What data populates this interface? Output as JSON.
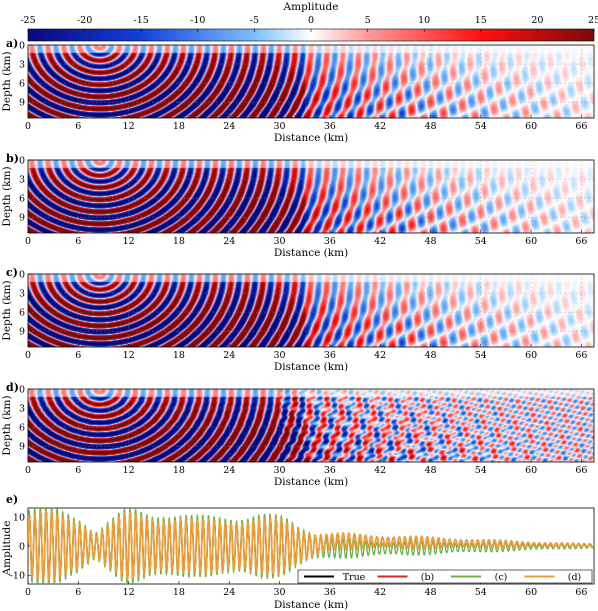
{
  "colorbar": {
    "label": "Amplitude",
    "ticks": [
      -25,
      -20,
      -15,
      -10,
      -5,
      0,
      5,
      10,
      15,
      20,
      25
    ],
    "range": [
      -25,
      25
    ],
    "colors": {
      "negative": "#08087a",
      "mid_negative": "#3aa0ff",
      "zero": "#ffffff",
      "mid_positive": "#ff2a2a",
      "positive": "#7a0a0a"
    }
  },
  "xaxis": {
    "label": "Distance (km)",
    "ticks": [
      0,
      6,
      12,
      18,
      24,
      30,
      36,
      42,
      48,
      54,
      60,
      66
    ],
    "range": [
      0,
      67.5
    ]
  },
  "panels": [
    {
      "tag": "a)",
      "ylabel": "Depth (km)",
      "yticks": [
        0,
        3,
        6,
        9
      ],
      "yrange": [
        0,
        11.5
      ],
      "wavefield_noise": 0.15
    },
    {
      "tag": "b)",
      "ylabel": "Depth (km)",
      "yticks": [
        0,
        3,
        6,
        9
      ],
      "yrange": [
        0,
        11.5
      ],
      "wavefield_noise": 0.15
    },
    {
      "tag": "c)",
      "ylabel": "Depth (km)",
      "yticks": [
        0,
        3,
        6,
        9
      ],
      "yrange": [
        0,
        11.5
      ],
      "wavefield_noise": 0.1
    },
    {
      "tag": "d)",
      "ylabel": "Depth (km)",
      "yticks": [
        0,
        3,
        6,
        9
      ],
      "yrange": [
        0,
        11.5
      ],
      "wavefield_noise": 0.55
    }
  ],
  "chart_data": {
    "type": "line",
    "tag": "e)",
    "ylabel": "Amplitude",
    "xlabel": "Distance (km)",
    "xlim": [
      0,
      67.5
    ],
    "ylim": [
      -13,
      13
    ],
    "yticks": [
      -10,
      0,
      10
    ],
    "legend_position": "bottom-right",
    "series": [
      {
        "name": "True",
        "color": "#000000"
      },
      {
        "name": "(b)",
        "color": "#d62728"
      },
      {
        "name": "(c)",
        "color": "#6ab04c"
      },
      {
        "name": "(d)",
        "color": "#f39c32"
      }
    ],
    "envelope": {
      "x": [
        0,
        3,
        6,
        8,
        12,
        16,
        20,
        24,
        28,
        31,
        34,
        36,
        38,
        42,
        46,
        50,
        54,
        58,
        62,
        66,
        67.5
      ],
      "amplitude": [
        12,
        12,
        11,
        5,
        12,
        12,
        9,
        11,
        10,
        9,
        5,
        3,
        2.8,
        2.3,
        2.2,
        1.8,
        1.5,
        1.2,
        0.8,
        0.6,
        0.5
      ],
      "offset": [
        0,
        0,
        0,
        0,
        0,
        0,
        0,
        0,
        0,
        0,
        0,
        1.5,
        1.6,
        1.4,
        1.2,
        1.0,
        0.8,
        0.6,
        0.4,
        0.3,
        0.2
      ]
    }
  }
}
